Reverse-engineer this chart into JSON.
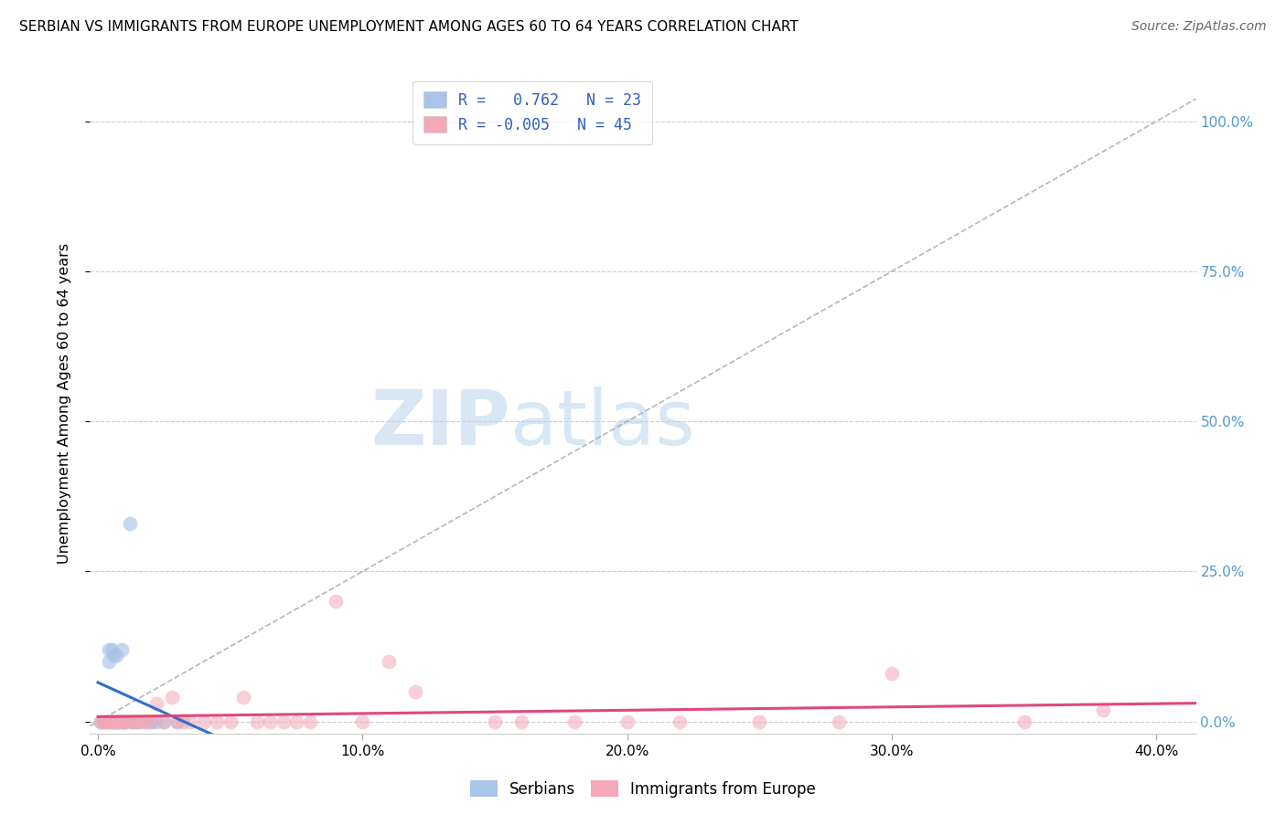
{
  "title": "SERBIAN VS IMMIGRANTS FROM EUROPE UNEMPLOYMENT AMONG AGES 60 TO 64 YEARS CORRELATION CHART",
  "source": "Source: ZipAtlas.com",
  "ylabel": "Unemployment Among Ages 60 to 64 years",
  "xlabel_ticks": [
    "0.0%",
    "10.0%",
    "20.0%",
    "30.0%",
    "40.0%"
  ],
  "xlabel_vals": [
    0.0,
    0.1,
    0.2,
    0.3,
    0.4
  ],
  "ytick_labels": [
    "0.0%",
    "25.0%",
    "50.0%",
    "75.0%",
    "100.0%"
  ],
  "ytick_vals": [
    0.0,
    0.25,
    0.5,
    0.75,
    1.0
  ],
  "xlim": [
    -0.003,
    0.415
  ],
  "ylim": [
    -0.02,
    1.08
  ],
  "watermark_zip": "ZIP",
  "watermark_atlas": "atlas",
  "legend_text_s": "R =   0.762   N = 23",
  "legend_text_i": "R = -0.005   N = 45",
  "serbian_color": "#a8c4e8",
  "immig_color": "#f4a8b8",
  "serbian_line_color": "#3070c8",
  "immig_line_color": "#e04878",
  "legend_R_color": "#3060c0",
  "grid_color": "#cccccc",
  "right_axis_color": "#5599cc",
  "serbian_x": [
    0.001,
    0.002,
    0.003,
    0.004,
    0.004,
    0.005,
    0.005,
    0.006,
    0.006,
    0.007,
    0.007,
    0.008,
    0.009,
    0.01,
    0.01,
    0.012,
    0.013,
    0.015,
    0.018,
    0.02,
    0.022,
    0.025,
    0.03
  ],
  "serbian_y": [
    0.0,
    0.0,
    0.0,
    0.12,
    0.1,
    0.0,
    0.12,
    0.0,
    0.11,
    0.0,
    0.11,
    0.0,
    0.12,
    0.0,
    0.0,
    0.33,
    0.0,
    0.0,
    0.0,
    0.0,
    0.0,
    0.0,
    0.0
  ],
  "immig_x": [
    0.001,
    0.002,
    0.003,
    0.004,
    0.005,
    0.006,
    0.007,
    0.008,
    0.009,
    0.01,
    0.012,
    0.013,
    0.015,
    0.016,
    0.018,
    0.02,
    0.022,
    0.025,
    0.028,
    0.03,
    0.032,
    0.035,
    0.04,
    0.045,
    0.05,
    0.055,
    0.06,
    0.065,
    0.07,
    0.075,
    0.08,
    0.09,
    0.1,
    0.11,
    0.12,
    0.15,
    0.16,
    0.18,
    0.2,
    0.22,
    0.25,
    0.28,
    0.3,
    0.35,
    0.38
  ],
  "immig_y": [
    0.0,
    0.0,
    0.0,
    0.0,
    0.0,
    0.0,
    0.0,
    0.0,
    0.0,
    0.0,
    0.0,
    0.0,
    0.0,
    0.0,
    0.0,
    0.0,
    0.03,
    0.0,
    0.04,
    0.0,
    0.0,
    0.0,
    0.0,
    0.0,
    0.0,
    0.04,
    0.0,
    0.0,
    0.0,
    0.0,
    0.0,
    0.2,
    0.0,
    0.1,
    0.05,
    0.0,
    0.0,
    0.0,
    0.0,
    0.0,
    0.0,
    0.0,
    0.08,
    0.0,
    0.02
  ],
  "diag_line_color": "#aaaaaa",
  "scatter_size": 130,
  "scatter_alpha_s": 0.65,
  "scatter_alpha_i": 0.55
}
